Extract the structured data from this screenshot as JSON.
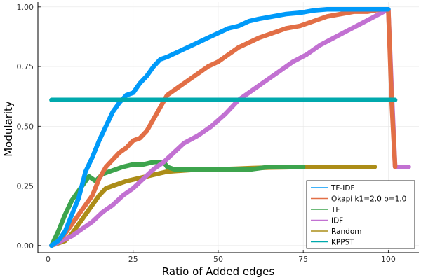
{
  "chart_data": {
    "type": "line",
    "xlabel": "Ratio of Added edges",
    "ylabel": "Modularity",
    "xlim": [
      -3,
      109
    ],
    "ylim": [
      -0.03,
      1.02
    ],
    "xticks": [
      0,
      25,
      50,
      75,
      100
    ],
    "yticks": [
      0.0,
      0.25,
      0.5,
      0.75,
      1.0
    ],
    "xtick_labels": [
      "0",
      "25",
      "50",
      "75",
      "100"
    ],
    "ytick_labels": [
      "0.00",
      "0.25",
      "0.50",
      "0.75",
      "1.00"
    ],
    "grid": true,
    "legend_position": "bottom-right",
    "series": [
      {
        "name": "TF-IDF",
        "color": "#009AF9",
        "x": [
          1,
          3,
          5,
          7,
          9,
          11,
          13,
          15,
          17,
          19,
          21,
          23,
          25,
          27,
          29,
          31,
          33,
          35,
          38,
          41,
          44,
          47,
          50,
          53,
          56,
          59,
          62,
          66,
          70,
          74,
          78,
          82,
          86,
          90,
          94,
          98,
          100
        ],
        "y": [
          0.0,
          0.02,
          0.06,
          0.13,
          0.2,
          0.31,
          0.37,
          0.44,
          0.5,
          0.56,
          0.6,
          0.63,
          0.64,
          0.68,
          0.71,
          0.75,
          0.78,
          0.79,
          0.81,
          0.83,
          0.85,
          0.87,
          0.89,
          0.91,
          0.92,
          0.94,
          0.95,
          0.96,
          0.97,
          0.975,
          0.985,
          0.99,
          0.99,
          0.99,
          0.99,
          0.99,
          0.99
        ]
      },
      {
        "name": "Okapi k1=2.0 b=1.0",
        "color": "#E26F46",
        "x": [
          1,
          3,
          5,
          7,
          9,
          11,
          13,
          15,
          17,
          19,
          21,
          23,
          25,
          27,
          29,
          31,
          33,
          35,
          38,
          41,
          44,
          47,
          50,
          53,
          56,
          59,
          62,
          66,
          70,
          74,
          78,
          82,
          86,
          90,
          94,
          98,
          100,
          101,
          102
        ],
        "y": [
          0.0,
          0.02,
          0.05,
          0.09,
          0.13,
          0.17,
          0.21,
          0.28,
          0.33,
          0.36,
          0.39,
          0.41,
          0.44,
          0.45,
          0.48,
          0.53,
          0.58,
          0.63,
          0.66,
          0.69,
          0.72,
          0.75,
          0.77,
          0.8,
          0.83,
          0.85,
          0.87,
          0.89,
          0.91,
          0.92,
          0.94,
          0.96,
          0.97,
          0.98,
          0.98,
          0.99,
          0.99,
          0.6,
          0.33
        ]
      },
      {
        "name": "TF",
        "color": "#3DA44D",
        "x": [
          1,
          3,
          5,
          7,
          9,
          11,
          12,
          14,
          16,
          18,
          20,
          22,
          25,
          28,
          31,
          34,
          35,
          37,
          40,
          45,
          50,
          55,
          60,
          65,
          70,
          75
        ],
        "y": [
          0.0,
          0.06,
          0.13,
          0.19,
          0.23,
          0.27,
          0.29,
          0.27,
          0.3,
          0.31,
          0.32,
          0.33,
          0.34,
          0.34,
          0.35,
          0.35,
          0.33,
          0.32,
          0.32,
          0.32,
          0.32,
          0.32,
          0.32,
          0.33,
          0.33,
          0.33
        ]
      },
      {
        "name": "IDF",
        "color": "#C271D2",
        "x": [
          1,
          4,
          7,
          10,
          13,
          16,
          19,
          22,
          25,
          28,
          31,
          34,
          37,
          40,
          44,
          48,
          52,
          56,
          60,
          64,
          68,
          72,
          76,
          80,
          84,
          88,
          92,
          96,
          100,
          101,
          102,
          106
        ],
        "y": [
          0.0,
          0.02,
          0.04,
          0.07,
          0.1,
          0.14,
          0.17,
          0.21,
          0.24,
          0.28,
          0.32,
          0.35,
          0.39,
          0.43,
          0.46,
          0.5,
          0.55,
          0.61,
          0.65,
          0.69,
          0.73,
          0.77,
          0.8,
          0.84,
          0.87,
          0.9,
          0.93,
          0.96,
          0.99,
          0.65,
          0.33,
          0.33
        ]
      },
      {
        "name": "Random",
        "color": "#AC8D18",
        "x": [
          1,
          3,
          5,
          7,
          9,
          11,
          13,
          15,
          17,
          19,
          21,
          23,
          26,
          29,
          32,
          35,
          40,
          45,
          50,
          55,
          60,
          65,
          70,
          75,
          80,
          85,
          90,
          96
        ],
        "y": [
          0.0,
          0.01,
          0.02,
          0.05,
          0.09,
          0.13,
          0.17,
          0.21,
          0.24,
          0.25,
          0.26,
          0.27,
          0.28,
          0.29,
          0.3,
          0.31,
          0.315,
          0.32,
          0.32,
          0.322,
          0.325,
          0.327,
          0.328,
          0.33,
          0.33,
          0.33,
          0.33,
          0.33
        ]
      },
      {
        "name": "KPPST",
        "color": "#00A9AD",
        "x": [
          1,
          102
        ],
        "y": [
          0.61,
          0.61
        ]
      }
    ]
  }
}
